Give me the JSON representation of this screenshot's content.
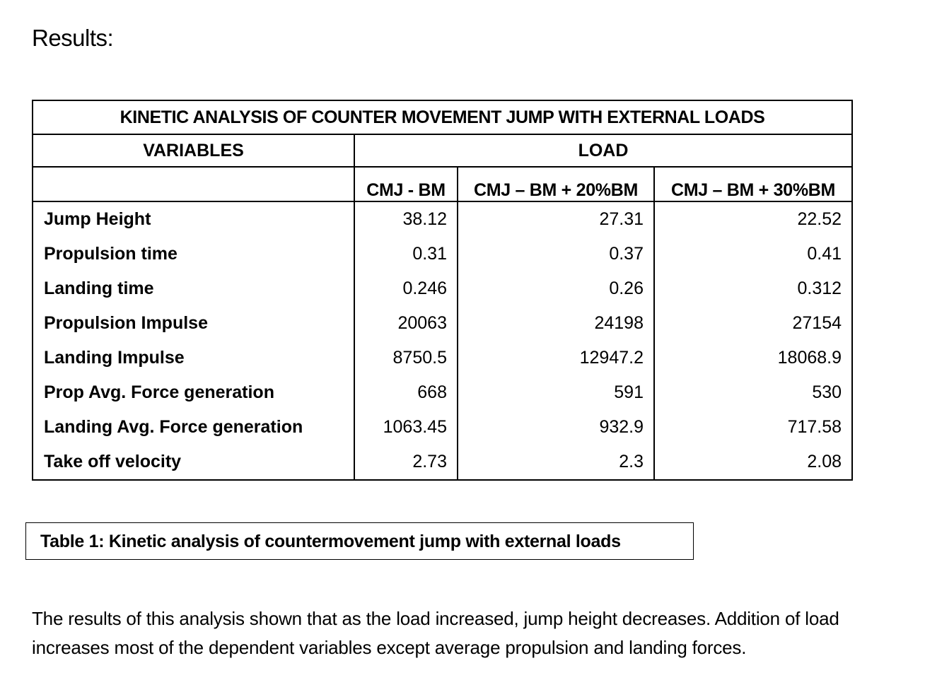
{
  "heading": "Results:",
  "table": {
    "title": "KINETIC ANALYSIS OF COUNTER MOVEMENT JUMP WITH EXTERNAL LOADS",
    "variables_header": "VARIABLES",
    "load_header": "LOAD",
    "columns": [
      "CMJ - BM",
      "CMJ – BM + 20%BM",
      "CMJ – BM + 30%BM"
    ],
    "rows": [
      {
        "label": "Jump Height",
        "values": [
          "38.12",
          "27.31",
          "22.52"
        ]
      },
      {
        "label": "Propulsion time",
        "values": [
          "0.31",
          "0.37",
          "0.41"
        ]
      },
      {
        "label": "Landing time",
        "values": [
          "0.246",
          "0.26",
          "0.312"
        ]
      },
      {
        "label": "Propulsion Impulse",
        "values": [
          "20063",
          "24198",
          "27154"
        ]
      },
      {
        "label": "Landing Impulse",
        "values": [
          "8750.5",
          "12947.2",
          "18068.9"
        ]
      },
      {
        "label": "Prop Avg. Force generation",
        "values": [
          "668",
          "591",
          "530"
        ]
      },
      {
        "label": "Landing Avg. Force generation",
        "values": [
          "1063.45",
          "932.9",
          "717.58"
        ]
      },
      {
        "label": "Take off velocity",
        "values": [
          "2.73",
          "2.3",
          "2.08"
        ]
      }
    ]
  },
  "caption": "Table 1: Kinetic analysis of countermovement jump with external loads",
  "paragraph": "The results of this analysis shown that as the load increased, jump height decreases. Addition of load increases most of the dependent variables except average propulsion and landing forces."
}
